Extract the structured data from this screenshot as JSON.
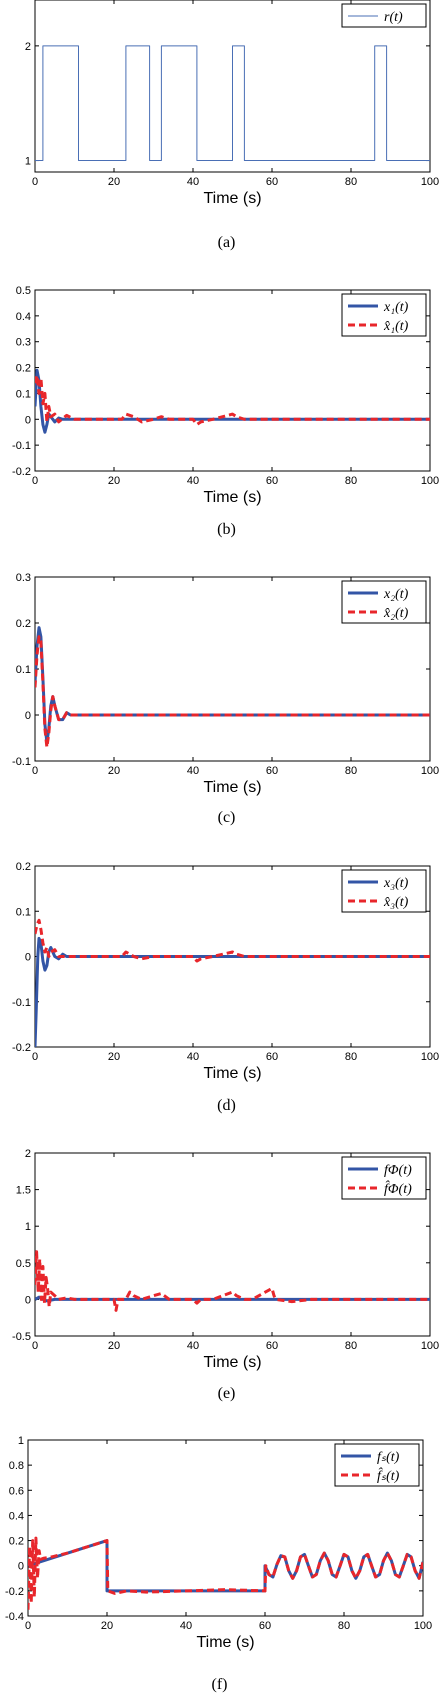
{
  "colors": {
    "reference": "#4a6fb5",
    "actual": "#3355a6",
    "estimate": "#e8262b",
    "axes": "#000000"
  },
  "chart_data": [
    {
      "id": "a",
      "type": "line",
      "caption": "(a)",
      "xlabel": "Time (s)",
      "ylabel": "",
      "xlim": [
        0,
        100
      ],
      "ylim": [
        0.9,
        2.4
      ],
      "xticks": [
        "0",
        "20",
        "40",
        "60",
        "80",
        "100"
      ],
      "yticks": [
        "1",
        "2"
      ],
      "legend": {
        "position": "top-right",
        "entries": [
          "r(t)"
        ]
      },
      "series": [
        {
          "name": "r(t)",
          "style": "thin",
          "color": "reference",
          "x": [
            0,
            2,
            2,
            11,
            11,
            23,
            23,
            29,
            29,
            32,
            32,
            41,
            41,
            50,
            50,
            53,
            53,
            86,
            86,
            89,
            89,
            100
          ],
          "y": [
            1,
            1,
            2,
            2,
            1,
            1,
            2,
            2,
            1,
            1,
            2,
            2,
            1,
            1,
            2,
            2,
            1,
            1,
            2,
            2,
            1,
            1
          ]
        }
      ]
    },
    {
      "id": "b",
      "type": "line",
      "caption": "(b)",
      "xlabel": "Time (s)",
      "ylabel": "",
      "xlim": [
        0,
        100
      ],
      "ylim": [
        -0.2,
        0.5
      ],
      "xticks": [
        "0",
        "20",
        "40",
        "60",
        "80",
        "100"
      ],
      "yticks": [
        "-0.2",
        "-0.1",
        "0",
        "0.1",
        "0.2",
        "0.3",
        "0.4",
        "0.5"
      ],
      "legend": {
        "position": "top-right",
        "entries": [
          "x₁(t)",
          "x̂₁(t)"
        ]
      },
      "series": [
        {
          "name": "x₁(t)",
          "style": "solid",
          "color": "actual",
          "x": [
            0,
            0.5,
            1,
            1.5,
            2,
            2.5,
            3,
            3.5,
            4,
            5,
            6,
            7,
            8,
            10,
            100
          ],
          "y": [
            0.05,
            0.19,
            0.15,
            0.05,
            -0.02,
            -0.05,
            -0.02,
            0.02,
            0.01,
            -0.01,
            0.005,
            0,
            0,
            0,
            0
          ]
        },
        {
          "name": "x̂₁(t)",
          "style": "dashed",
          "color": "estimate",
          "x": [
            0,
            0.5,
            1,
            1.5,
            2,
            2.5,
            3,
            3.5,
            4,
            5,
            6,
            8,
            10,
            12,
            22,
            23,
            25,
            27,
            30,
            32,
            34,
            40,
            41,
            42,
            45,
            50,
            51,
            53,
            55,
            100
          ],
          "y": [
            0.14,
            0.17,
            0.1,
            0.16,
            0.06,
            0.1,
            -0.01,
            0.05,
            0.01,
            0.02,
            -0.01,
            0.015,
            0,
            0,
            0,
            0.02,
            0.01,
            -0.01,
            0,
            0.01,
            0,
            0,
            -0.02,
            -0.01,
            0,
            0.02,
            0.01,
            0,
            0,
            0
          ]
        }
      ]
    },
    {
      "id": "c",
      "type": "line",
      "caption": "(c)",
      "xlabel": "Time (s)",
      "ylabel": "",
      "xlim": [
        0,
        100
      ],
      "ylim": [
        -0.1,
        0.3
      ],
      "xticks": [
        "0",
        "20",
        "40",
        "60",
        "80",
        "100"
      ],
      "yticks": [
        "-0.1",
        "0",
        "0.1",
        "0.2",
        "0.3"
      ],
      "legend": {
        "position": "top-right",
        "entries": [
          "x₂(t)",
          "x̂₂(t)"
        ]
      },
      "series": [
        {
          "name": "x₂(t)",
          "style": "solid",
          "color": "actual",
          "x": [
            0,
            0.5,
            1,
            1.5,
            2,
            2.5,
            3,
            3.5,
            4,
            4.5,
            5,
            6,
            7,
            8,
            9,
            10,
            100
          ],
          "y": [
            0.07,
            0.15,
            0.19,
            0.17,
            0.08,
            -0.02,
            -0.06,
            -0.03,
            0.02,
            0.04,
            0.02,
            -0.01,
            -0.01,
            0.005,
            0,
            0,
            0
          ]
        },
        {
          "name": "x̂₂(t)",
          "style": "dashed",
          "color": "estimate",
          "x": [
            0,
            0.5,
            1,
            1.5,
            2,
            2.5,
            3,
            3.5,
            4,
            4.5,
            5,
            6,
            7,
            8,
            9,
            10,
            100
          ],
          "y": [
            0.06,
            0.13,
            0.17,
            0.16,
            0.07,
            -0.03,
            -0.07,
            -0.04,
            0.01,
            0.04,
            0.02,
            -0.01,
            -0.01,
            0.005,
            0,
            0,
            0
          ]
        }
      ]
    },
    {
      "id": "d",
      "type": "line",
      "caption": "(d)",
      "xlabel": "Time (s)",
      "ylabel": "",
      "xlim": [
        0,
        100
      ],
      "ylim": [
        -0.2,
        0.2
      ],
      "xticks": [
        "0",
        "20",
        "40",
        "60",
        "80",
        "100"
      ],
      "yticks": [
        "-0.2",
        "-0.1",
        "0",
        "0.1",
        "0.2"
      ],
      "legend": {
        "position": "top-right",
        "entries": [
          "x₃(t)",
          "x̂₃(t)"
        ]
      },
      "series": [
        {
          "name": "x₃(t)",
          "style": "solid",
          "color": "actual",
          "x": [
            0,
            0.3,
            0.7,
            1,
            1.5,
            2,
            2.5,
            3,
            3.5,
            4,
            5,
            6,
            7,
            8,
            10,
            100
          ],
          "y": [
            -0.2,
            -0.12,
            0,
            0.04,
            0.03,
            -0.01,
            -0.03,
            -0.02,
            0.01,
            0.02,
            0,
            -0.005,
            0.005,
            0,
            0,
            0
          ]
        },
        {
          "name": "x̂₃(t)",
          "style": "dashed",
          "color": "estimate",
          "x": [
            0,
            0.5,
            1,
            1.5,
            2,
            2.5,
            3,
            3.5,
            4,
            5,
            6,
            8,
            10,
            22,
            23,
            25,
            27,
            30,
            32,
            40,
            41,
            42,
            45,
            50,
            51,
            53,
            55,
            100
          ],
          "y": [
            0.05,
            0.07,
            0.08,
            0.06,
            0.03,
            0.01,
            0.02,
            0,
            0.01,
            0.015,
            0,
            0,
            0,
            0,
            0.01,
            0,
            -0.005,
            0,
            0,
            0,
            -0.01,
            -0.005,
            0,
            0.01,
            0.005,
            0,
            0,
            0
          ]
        }
      ]
    },
    {
      "id": "e",
      "type": "line",
      "caption": "(e)",
      "xlabel": "Time (s)",
      "ylabel": "",
      "xlim": [
        0,
        100
      ],
      "ylim": [
        -0.5,
        2
      ],
      "xticks": [
        "0",
        "20",
        "40",
        "60",
        "80",
        "100"
      ],
      "yticks": [
        "-0.5",
        "0",
        "0.5",
        "1",
        "1.5",
        "2"
      ],
      "legend": {
        "position": "top-right",
        "entries": [
          "fΦ(t)",
          "f̂Φ(t)"
        ]
      },
      "series": [
        {
          "name": "fΦ(t)",
          "style": "solid",
          "color": "actual",
          "x": [
            0,
            1,
            2,
            3,
            5,
            100
          ],
          "y": [
            0,
            0.03,
            0,
            -0.02,
            0,
            0
          ]
        },
        {
          "name": "f̂Φ(t)",
          "style": "dashed",
          "color": "estimate",
          "x": [
            0,
            0.4,
            0.8,
            1.2,
            1.6,
            2,
            2.4,
            2.8,
            3.2,
            3.6,
            4,
            5,
            6,
            8,
            10,
            20,
            20.5,
            21,
            23,
            24,
            25,
            27,
            30,
            32,
            34,
            40,
            41,
            42,
            45,
            50,
            51,
            53,
            55,
            60,
            60.5,
            61,
            65,
            70,
            80,
            90,
            100
          ],
          "y": [
            0.2,
            0.65,
            0.1,
            0.55,
            0,
            0.45,
            -0.05,
            0.3,
            0.15,
            -0.1,
            0.1,
            0.05,
            0,
            0.02,
            0,
            0,
            -0.15,
            0,
            0,
            0.1,
            0.05,
            0,
            0.05,
            0.08,
            0,
            0,
            -0.05,
            0,
            0,
            0.1,
            0.05,
            0,
            0,
            0.15,
            0.05,
            0,
            -0.03,
            0,
            0,
            0,
            0
          ]
        }
      ]
    },
    {
      "id": "f",
      "type": "line",
      "caption": "(f)",
      "xlabel": "Time (s)",
      "ylabel": "",
      "xlim": [
        0,
        100
      ],
      "ylim": [
        -0.4,
        1
      ],
      "xticks": [
        "0",
        "20",
        "40",
        "60",
        "80",
        "100"
      ],
      "yticks": [
        "-0.4",
        "-0.2",
        "0",
        "0.2",
        "0.4",
        "0.6",
        "0.8",
        "1"
      ],
      "legend": {
        "position": "top-right",
        "entries": [
          "fₛ(t)",
          "f̂ₛ(t)"
        ]
      },
      "series": [
        {
          "name": "fₛ(t)",
          "style": "solid",
          "color": "actual",
          "x": [
            0,
            20,
            20,
            60,
            60,
            61,
            62,
            63,
            64,
            65,
            66,
            67,
            68,
            69,
            70,
            71,
            72,
            73,
            74,
            75,
            76,
            77,
            78,
            79,
            80,
            81,
            82,
            83,
            84,
            85,
            86,
            87,
            88,
            89,
            90,
            91,
            92,
            93,
            94,
            95,
            96,
            97,
            98,
            99,
            100
          ],
          "y": [
            0,
            0.2,
            -0.2,
            -0.2,
            0,
            -0.07,
            -0.09,
            0.01,
            0.08,
            0.07,
            -0.04,
            -0.1,
            -0.04,
            0.07,
            0.09,
            0.0,
            -0.09,
            -0.07,
            0.04,
            0.1,
            0.04,
            -0.07,
            -0.09,
            0.0,
            0.09,
            0.07,
            -0.04,
            -0.1,
            -0.04,
            0.07,
            0.09,
            0.0,
            -0.09,
            -0.07,
            0.04,
            0.1,
            0.04,
            -0.07,
            -0.09,
            0.0,
            0.09,
            0.07,
            -0.04,
            -0.1,
            0.03
          ]
        },
        {
          "name": "f̂ₛ(t)",
          "style": "dashed",
          "color": "estimate",
          "x": [
            0,
            0.4,
            0.8,
            1.2,
            1.6,
            2,
            2.4,
            2.8,
            3.2,
            4,
            6,
            10,
            20,
            20.2,
            22,
            25,
            30,
            40,
            50,
            60,
            60.2,
            61,
            62,
            63,
            64,
            65,
            66,
            67,
            68,
            69,
            70,
            71,
            72,
            73,
            74,
            75,
            76,
            77,
            78,
            79,
            80,
            81,
            82,
            83,
            84,
            85,
            86,
            87,
            88,
            89,
            90,
            91,
            92,
            93,
            94,
            95,
            96,
            97,
            98,
            99,
            100
          ],
          "y": [
            -0.35,
            0.15,
            -0.3,
            0.2,
            -0.25,
            0.22,
            -0.1,
            0.12,
            0.05,
            0.06,
            0.07,
            0.1,
            0.2,
            -0.2,
            -0.22,
            -0.2,
            -0.21,
            -0.2,
            -0.19,
            -0.2,
            0,
            -0.07,
            -0.09,
            0.01,
            0.08,
            0.07,
            -0.04,
            -0.1,
            -0.04,
            0.07,
            0.09,
            0.0,
            -0.09,
            -0.07,
            0.04,
            0.1,
            0.04,
            -0.07,
            -0.09,
            0.0,
            0.09,
            0.07,
            -0.04,
            -0.1,
            -0.04,
            0.07,
            0.09,
            0.0,
            -0.09,
            -0.07,
            0.04,
            0.1,
            0.04,
            -0.07,
            -0.09,
            0.0,
            0.09,
            0.07,
            -0.04,
            -0.1,
            0.03
          ]
        }
      ]
    }
  ]
}
